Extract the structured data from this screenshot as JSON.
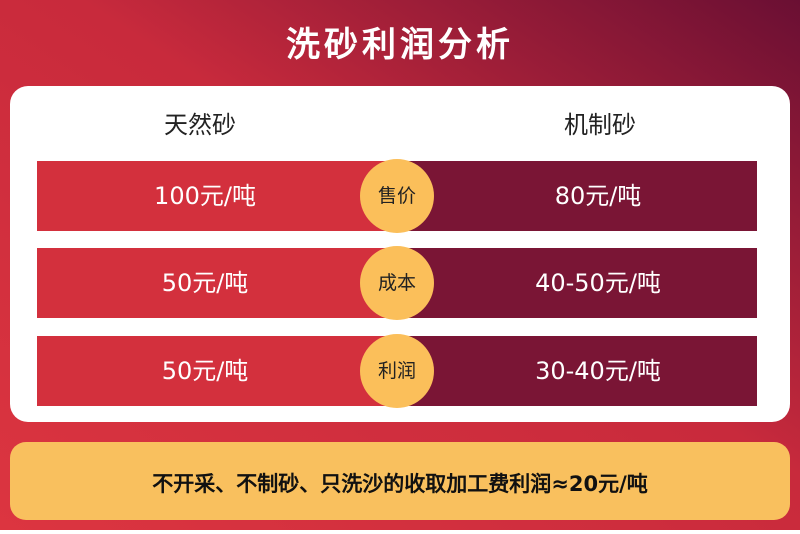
{
  "title": "洗砂利润分析",
  "columns": [
    "天然砂",
    "机制砂"
  ],
  "rows": [
    {
      "label": "售价",
      "natural": "100元/吨",
      "manufactured": "80元/吨"
    },
    {
      "label": "成本",
      "natural": "50元/吨",
      "manufactured": "40-50元/吨"
    },
    {
      "label": "利润",
      "natural": "50元/吨",
      "manufactured": "30-40元/吨"
    }
  ],
  "footer": "不开采、不制砂、只洗沙的收取加工费利润≈20元/吨"
}
